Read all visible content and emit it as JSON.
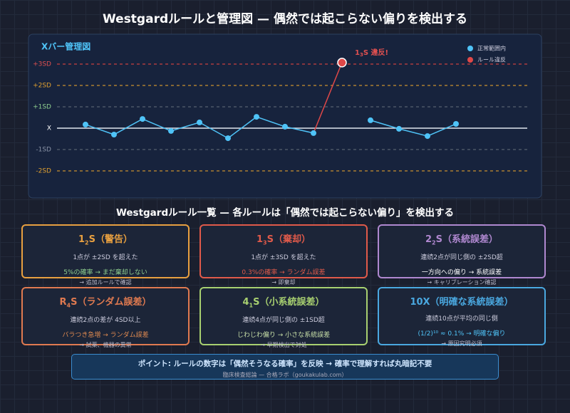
{
  "title": "Westgardルールと管理図 — 偶然では起こらない偏りを検出する",
  "chart_data": {
    "type": "line",
    "title": "Xバー管理図",
    "categories": [
      null,
      null,
      null,
      null,
      null,
      null,
      null,
      null,
      null,
      null,
      null,
      null,
      null,
      null
    ],
    "series": [
      {
        "name": "正常範囲内",
        "color": "#4fc3f7",
        "values": [
          0.17,
          -0.3,
          0.43,
          -0.13,
          0.27,
          -0.47,
          0.53,
          0.07,
          -0.23,
          null,
          0.37,
          -0.03,
          -0.37,
          0.2
        ]
      },
      {
        "name": "ルール違反",
        "color": "#e04848",
        "values": [
          null,
          null,
          null,
          null,
          null,
          null,
          null,
          null,
          null,
          3.07,
          null,
          null,
          null,
          null
        ]
      }
    ],
    "ylim": [
      -2.8,
      3.5
    ],
    "yticks": [
      {
        "value": 3,
        "label": "+3SD"
      },
      {
        "value": 2,
        "label": "+2SD"
      },
      {
        "value": 1,
        "label": "+1SD"
      },
      {
        "value": 0,
        "label": "X"
      },
      {
        "value": -1,
        "label": "-1SD"
      },
      {
        "value": -2,
        "label": "-2SD"
      }
    ],
    "grid": true,
    "legend": "upper right",
    "annotation": [
      "1",
      "3",
      "S 違反!"
    ]
  },
  "section_title": "Westgardルール一覧 — 各ルールは「偶然では起こらない偏り」を検出する",
  "cards": [
    {
      "name": [
        "1",
        "2",
        "S（警告）"
      ],
      "desc": "1点が ±2SD を超えた",
      "detail": "5%の確率 → まだ棄却しない",
      "note": "→ 追加ルールで確認"
    },
    {
      "name": [
        "1",
        "3",
        "S（棄却）"
      ],
      "desc": "1点が ±3SD を超えた",
      "detail": "0.3%の確率 → ランダム誤差",
      "note": "→ 即棄却"
    },
    {
      "name": [
        "2",
        "2",
        "S（系統誤差）"
      ],
      "desc": "連続2点が同じ側の ±2SD超",
      "detail": "一方向への偏り → 系統誤差",
      "note": "→ キャリブレーション確認"
    },
    {
      "name": [
        "R",
        "4",
        "S（ランダム誤差）"
      ],
      "desc": "連続2点の差が 4SD以上",
      "detail": "バラつき急増 → ランダム誤差",
      "note": "→ 試薬、機器の異常"
    },
    {
      "name": [
        "4",
        "1",
        "S（小系統誤差）"
      ],
      "desc": "連続4点が同じ側の ±1SD超",
      "detail": "じわじわ偏り → 小さな系統誤差",
      "note": "→ 早期検出で対処"
    },
    {
      "name": [
        "10X（明確な系統誤差）"
      ],
      "desc": "連続10点が平均の同じ側",
      "detail": "(1/2)¹⁰ ≈ 0.1% → 明確な偏り",
      "note": "→ 原因究明必須"
    }
  ],
  "point": {
    "text": "ポイント: ルールの数字は「偶然そうなる確率」を反映 → 確率で理解すれば丸暗記不要",
    "source": "臨床検査総論 — 合格ラボ（goukakulab.com）"
  }
}
